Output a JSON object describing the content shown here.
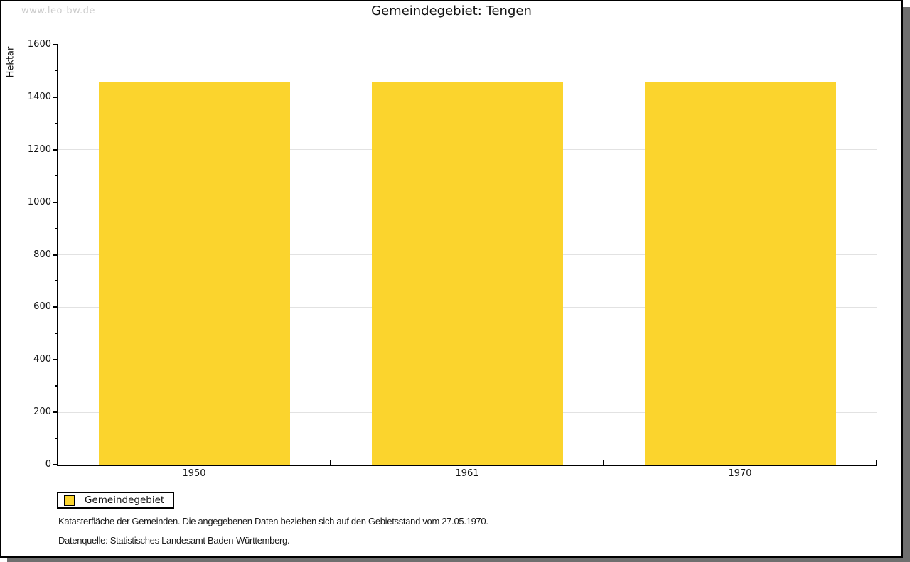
{
  "watermark": "www.leo-bw.de",
  "title": "Gemeindegebiet: Tengen",
  "chart_data": {
    "type": "bar",
    "title": "Gemeindegebiet: Tengen",
    "categories": [
      "1950",
      "1961",
      "1970"
    ],
    "series": [
      {
        "name": "Gemeindegebiet",
        "values": [
          1460,
          1460,
          1460
        ]
      }
    ],
    "xlabel": "",
    "ylabel": "Hektar",
    "ylim": [
      0,
      1600
    ],
    "ytick_step": 200,
    "yminor_step": 100,
    "grid": true,
    "legend_position": "bottom-left",
    "bar_color": "#fbd42d"
  },
  "legend": {
    "label": "Gemeindegebiet",
    "swatch_color": "#fbd42d"
  },
  "footnotes": [
    "Katasterfläche der Gemeinden. Die angegebenen Daten beziehen sich auf den Gebietsstand vom 27.05.1970.",
    "Datenquelle: Statistisches Landesamt Baden-Württemberg."
  ],
  "colors": {
    "bar": "#fbd42d",
    "gridline": "#e2e2e2",
    "axis": "#000000",
    "text": "#111111",
    "watermark": "#cbcbcb",
    "shadow": "#6f6f6f"
  }
}
